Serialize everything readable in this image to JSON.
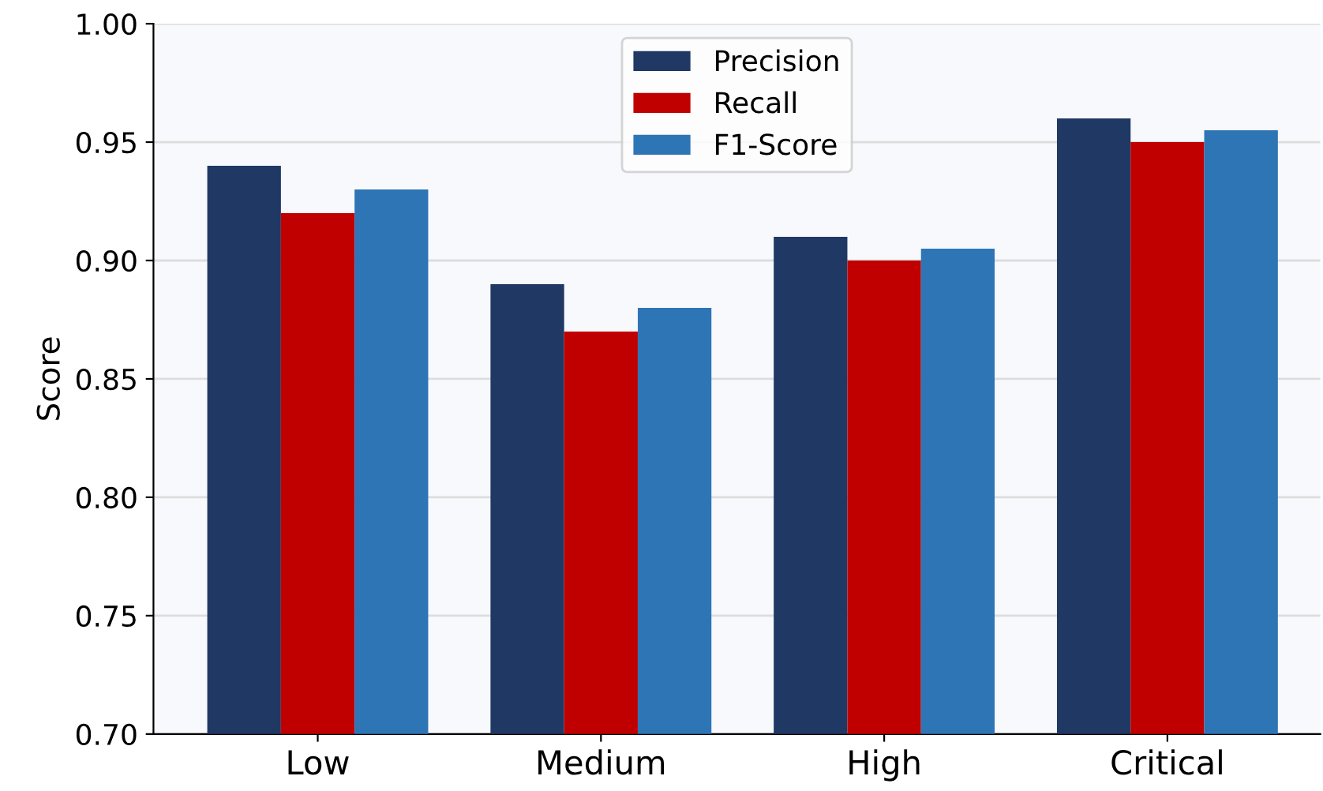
{
  "chart_data": {
    "type": "bar",
    "ylabel": "Score",
    "categories": [
      "Low",
      "Medium",
      "High",
      "Critical"
    ],
    "series": [
      {
        "name": "Precision",
        "color": "#1f3864",
        "values": [
          0.94,
          0.89,
          0.91,
          0.96
        ]
      },
      {
        "name": "Recall",
        "color": "#c00000",
        "values": [
          0.92,
          0.87,
          0.9,
          0.95
        ]
      },
      {
        "name": "F1-Score",
        "color": "#2e75b6",
        "values": [
          0.93,
          0.88,
          0.905,
          0.955
        ]
      }
    ],
    "ylim": [
      0.7,
      1.0
    ],
    "yticks": [
      {
        "value": 0.7,
        "label": "0.70"
      },
      {
        "value": 0.75,
        "label": "0.75"
      },
      {
        "value": 0.8,
        "label": "0.80"
      },
      {
        "value": 0.85,
        "label": "0.85"
      },
      {
        "value": 0.9,
        "label": "0.90"
      },
      {
        "value": 0.95,
        "label": "0.95"
      },
      {
        "value": 1.0,
        "label": "1.00"
      }
    ],
    "grid": "y",
    "legend": "top"
  }
}
